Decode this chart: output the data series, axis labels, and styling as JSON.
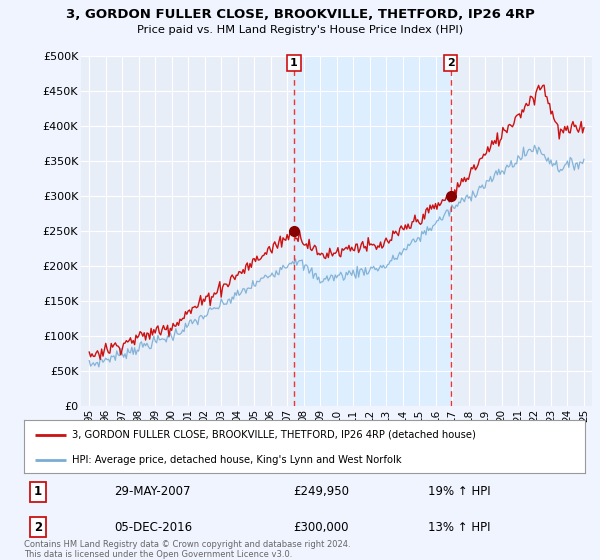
{
  "title_line1": "3, GORDON FULLER CLOSE, BROOKVILLE, THETFORD, IP26 4RP",
  "title_line2": "Price paid vs. HM Land Registry's House Price Index (HPI)",
  "ylabel_ticks": [
    "£0",
    "£50K",
    "£100K",
    "£150K",
    "£200K",
    "£250K",
    "£300K",
    "£350K",
    "£400K",
    "£450K",
    "£500K"
  ],
  "ytick_vals": [
    0,
    50000,
    100000,
    150000,
    200000,
    250000,
    300000,
    350000,
    400000,
    450000,
    500000
  ],
  "ylim": [
    0,
    500000
  ],
  "xlim_start": 1994.5,
  "xlim_end": 2025.5,
  "xtick_years": [
    1995,
    1996,
    1997,
    1998,
    1999,
    2000,
    2001,
    2002,
    2003,
    2004,
    2005,
    2006,
    2007,
    2008,
    2009,
    2010,
    2011,
    2012,
    2013,
    2014,
    2015,
    2016,
    2017,
    2018,
    2019,
    2020,
    2021,
    2022,
    2023,
    2024,
    2025
  ],
  "hpi_color": "#7aadd4",
  "price_color": "#cc1111",
  "vline_color": "#ee3333",
  "shade_color": "#ddeeff",
  "background_color": "#f0f4ff",
  "plot_bg": "#e8eef8",
  "grid_color": "#ffffff",
  "legend_label1": "3, GORDON FULLER CLOSE, BROOKVILLE, THETFORD, IP26 4RP (detached house)",
  "legend_label2": "HPI: Average price, detached house, King's Lynn and West Norfolk",
  "marker1_year": 2007.41,
  "marker1_price": 249950,
  "marker2_year": 2016.92,
  "marker2_price": 300000,
  "annotation1": [
    "1",
    "29-MAY-2007",
    "£249,950",
    "19% ↑ HPI"
  ],
  "annotation2": [
    "2",
    "05-DEC-2016",
    "£300,000",
    "13% ↑ HPI"
  ],
  "footer": "Contains HM Land Registry data © Crown copyright and database right 2024.\nThis data is licensed under the Open Government Licence v3.0."
}
